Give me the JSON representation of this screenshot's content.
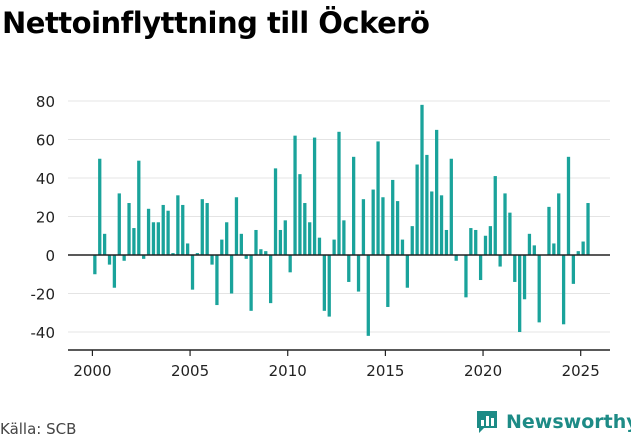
{
  "header": {
    "title": "Nettoinflyttning till Öckerö"
  },
  "footer": {
    "source": "Källa: SCB",
    "brand": "Newsworthy"
  },
  "colors": {
    "bar": "#1aa39b",
    "brand": "#1d8b86",
    "axis": "#222222",
    "grid": "#e4e4e4"
  },
  "chart_data": {
    "type": "bar",
    "title": "Nettoinflyttning till Öckerö",
    "xlabel": "",
    "ylabel": "",
    "ylim": [
      -45,
      85
    ],
    "yticks": [
      80,
      60,
      40,
      20,
      0,
      -20,
      -40
    ],
    "xticks": [
      2000,
      2005,
      2010,
      2015,
      2020,
      2025
    ],
    "xlim": [
      1998.75,
      2026.5
    ],
    "grid": true,
    "quarter_start": 2000.0,
    "values": [
      -10,
      50,
      11,
      -5,
      -17,
      32,
      -3,
      27,
      14,
      49,
      -2,
      24,
      17,
      17,
      26,
      23,
      1,
      31,
      26,
      6,
      -18,
      1,
      29,
      27,
      -5,
      -26,
      8,
      17,
      -20,
      30,
      11,
      -2,
      -29,
      13,
      3,
      2,
      -25,
      45,
      13,
      18,
      -9,
      62,
      42,
      27,
      17,
      61,
      9,
      -29,
      -32,
      8,
      64,
      18,
      -14,
      51,
      -19,
      29,
      -42,
      34,
      59,
      30,
      -27,
      39,
      28,
      8,
      -17,
      15,
      47,
      78,
      52,
      33,
      65,
      31,
      13,
      50,
      -3,
      0,
      -22,
      14,
      13,
      -13,
      10,
      15,
      41,
      -6,
      32,
      22,
      -14,
      -40,
      -23,
      11,
      5,
      -35,
      0,
      25,
      6,
      32,
      -36,
      51,
      -15,
      2,
      7,
      27
    ]
  }
}
